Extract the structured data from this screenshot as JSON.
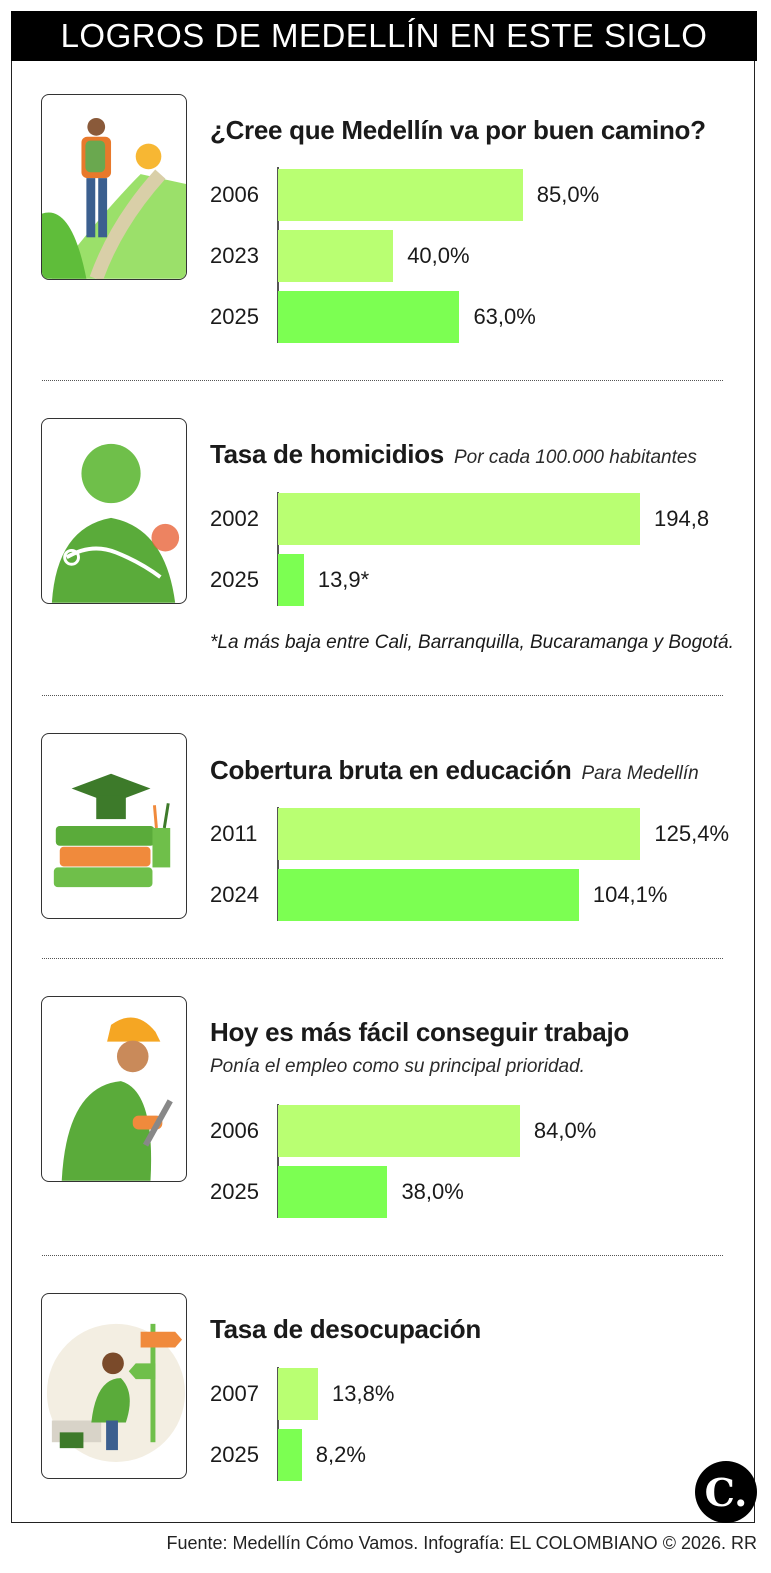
{
  "header": {
    "title": "LOGROS DE MEDELLÍN EN ESTE SIGLO"
  },
  "colors": {
    "bar_light": "#b9ff72",
    "bar_dark": "#7cff52",
    "banner": "#000000"
  },
  "chart_data": [
    {
      "type": "bar",
      "orientation": "horizontal",
      "title": "¿Cree que Medellín va por buen camino?",
      "categories": [
        "2006",
        "2023",
        "2025"
      ],
      "values": [
        85.0,
        40.0,
        63.0
      ],
      "value_labels": [
        "85,0%",
        "40,0%",
        "63,0%"
      ],
      "icon": "walker-path-icon"
    },
    {
      "type": "bar",
      "orientation": "horizontal",
      "title": "Tasa de homicidios",
      "subtitle": "Por cada 100.000 habitantes",
      "categories": [
        "2002",
        "2025"
      ],
      "values": [
        194.8,
        13.9
      ],
      "value_labels": [
        "194,8",
        "13,9*"
      ],
      "footnote": "*La más baja entre Cali, Barranquilla, Bucaramanga y Bogotá.",
      "icon": "crime-silhouette-icon"
    },
    {
      "type": "bar",
      "orientation": "horizontal",
      "title": "Cobertura bruta en educación",
      "subtitle": "Para Medellín",
      "categories": [
        "2011",
        "2024"
      ],
      "values": [
        125.4,
        104.1
      ],
      "value_labels": [
        "125,4%",
        "104,1%"
      ],
      "icon": "books-graduation-cap-icon"
    },
    {
      "type": "bar",
      "orientation": "horizontal",
      "title": "Hoy es más fácil conseguir trabajo",
      "subtitle": "Ponía el empleo como su principal prioridad.",
      "categories": [
        "2006",
        "2025"
      ],
      "values": [
        84.0,
        38.0
      ],
      "value_labels": [
        "84,0%",
        "38,0%"
      ],
      "icon": "worker-wrench-icon"
    },
    {
      "type": "bar",
      "orientation": "horizontal",
      "title": "Tasa de desocupación",
      "categories": [
        "2007",
        "2025"
      ],
      "values": [
        13.8,
        8.2
      ],
      "value_labels": [
        "13,8%",
        "8,2%"
      ],
      "icon": "unemployed-person-signpost-icon"
    }
  ],
  "footer": {
    "source": "Fuente: Medellín Cómo Vamos. Infografía: EL COLOMBIANO © 2026. RR",
    "logo_text": "C."
  }
}
